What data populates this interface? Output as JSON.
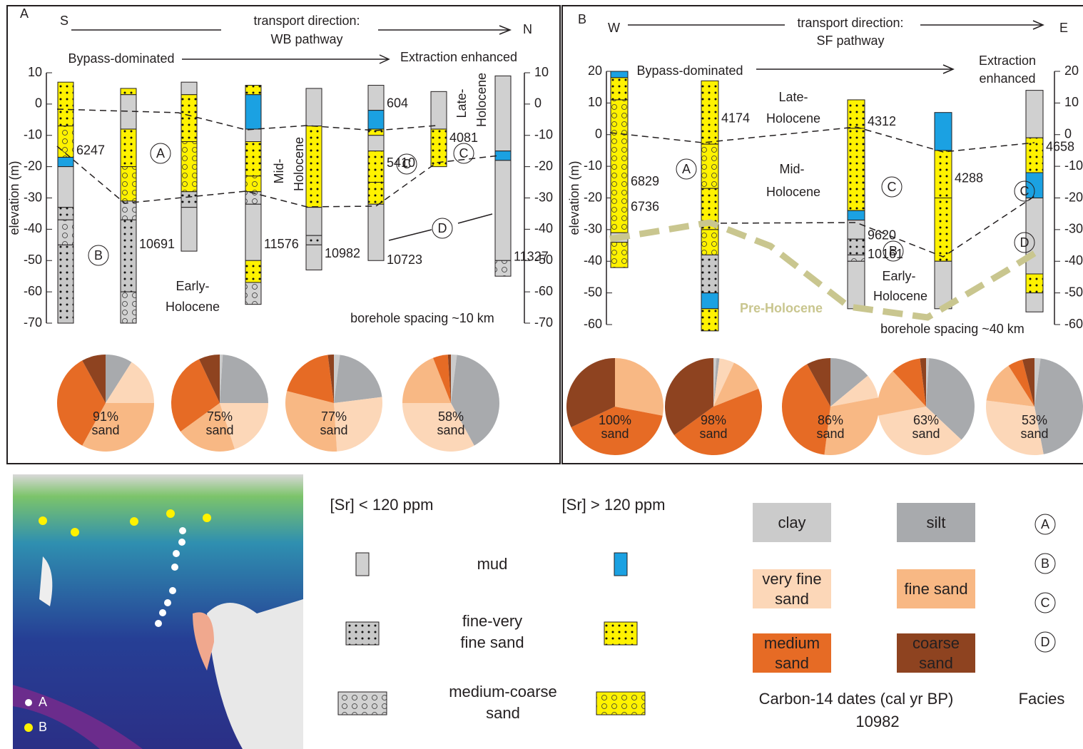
{
  "panel_a": {
    "label": "A",
    "start": "S",
    "end": "N",
    "transport": [
      "transport direction:",
      "WB pathway"
    ],
    "trend": [
      "Bypass-dominated",
      "Extraction enhanced"
    ],
    "ylabel": "elevation (m)",
    "ylim": [
      -70,
      10
    ],
    "yticks": [
      -70,
      -60,
      -50,
      -40,
      -30,
      -20,
      -10,
      0,
      10
    ],
    "periods": [
      "Early-",
      "Holocene",
      "Mid-",
      "Holocene",
      "Late-",
      "Holocene"
    ],
    "spacing": "borehole spacing ~10 km",
    "boreholes": [
      {
        "segments": [
          [
            7,
            -7,
            1,
            true
          ],
          [
            -7,
            -17,
            2,
            true
          ],
          [
            -17,
            -20,
            0,
            true
          ],
          [
            -20,
            -33,
            0,
            false
          ],
          [
            -33,
            -37,
            1,
            false
          ],
          [
            -37,
            -45,
            2,
            false
          ],
          [
            -45,
            -70,
            1,
            false
          ]
        ],
        "dates": [
          {
            "age": 6247,
            "elevation": -15
          }
        ]
      },
      {
        "segments": [
          [
            5,
            3,
            1,
            true
          ],
          [
            3,
            -8,
            0,
            false
          ],
          [
            -8,
            -20,
            1,
            true
          ],
          [
            -20,
            -31,
            2,
            true
          ],
          [
            -31,
            -37,
            2,
            false
          ],
          [
            -37,
            -60,
            1,
            false
          ],
          [
            -60,
            -70,
            2,
            false
          ]
        ],
        "dates": [
          {
            "age": 10691,
            "elevation": -45
          }
        ]
      },
      {
        "segments": [
          [
            7,
            3,
            0,
            false
          ],
          [
            3,
            -12,
            1,
            true
          ],
          [
            -12,
            -28,
            2,
            true
          ],
          [
            -28,
            -33,
            1,
            false
          ],
          [
            -33,
            -47,
            0,
            false
          ]
        ],
        "dates": []
      },
      {
        "segments": [
          [
            6,
            3,
            1,
            true
          ],
          [
            3,
            -8,
            0,
            true
          ],
          [
            -8,
            -12,
            0,
            false
          ],
          [
            -12,
            -23,
            1,
            true
          ],
          [
            -23,
            -28,
            2,
            true
          ],
          [
            -28,
            -32,
            2,
            false
          ],
          [
            -32,
            -50,
            0,
            false
          ],
          [
            -50,
            -57,
            1,
            true
          ],
          [
            -57,
            -64,
            2,
            false
          ]
        ],
        "dates": [
          {
            "age": 11576,
            "elevation": -45
          }
        ]
      },
      {
        "segments": [
          [
            5,
            -7,
            0,
            false
          ],
          [
            -7,
            -33,
            1,
            true
          ],
          [
            -33,
            -42,
            0,
            false
          ],
          [
            -42,
            -45,
            1,
            false
          ],
          [
            -45,
            -53,
            0,
            false
          ]
        ],
        "dates": [
          {
            "age": 10982,
            "elevation": -48
          }
        ]
      },
      {
        "segments": [
          [
            6,
            -2,
            0,
            false
          ],
          [
            -2,
            -8,
            0,
            true
          ],
          [
            -8,
            -10,
            1,
            true
          ],
          [
            -10,
            -15,
            0,
            false
          ],
          [
            -15,
            -25,
            1,
            true
          ],
          [
            -25,
            -32,
            1,
            true
          ],
          [
            -32,
            -50,
            0,
            false
          ]
        ],
        "dates": [
          {
            "age": 604,
            "elevation": 0
          },
          {
            "age": 5410,
            "elevation": -19
          },
          {
            "age": 10723,
            "elevation": -50
          }
        ]
      },
      {
        "segments": [
          [
            4,
            -8,
            0,
            false
          ],
          [
            -8,
            -20,
            1,
            true
          ]
        ],
        "dates": [
          {
            "age": 4081,
            "elevation": -11
          }
        ]
      },
      {
        "segments": [
          [
            9,
            -15,
            0,
            false
          ],
          [
            -15,
            -18,
            0,
            true
          ],
          [
            -18,
            -50,
            0,
            false
          ],
          [
            -50,
            -55,
            2,
            false
          ]
        ],
        "dates": [
          {
            "age": 11327,
            "elevation": -49
          }
        ]
      }
    ]
  },
  "panel_b": {
    "label": "B",
    "start": "W",
    "end": "E",
    "transport": [
      "transport direction:",
      "SF pathway"
    ],
    "trend": [
      "Bypass-dominated",
      "Extraction",
      "enhanced"
    ],
    "ylabel": "elevation (m)",
    "ylim": [
      -60,
      20
    ],
    "yticks": [
      -60,
      -50,
      -40,
      -30,
      -20,
      -10,
      0,
      10,
      20
    ],
    "periods": [
      "Late-",
      "Holocene",
      "Mid-",
      "Holocene",
      "Early-",
      "Holocene",
      "Pre-Holocene"
    ],
    "spacing": "borehole spacing ~40 km",
    "boreholes": [
      {
        "segments": [
          [
            20,
            18,
            0,
            true
          ],
          [
            18,
            11,
            1,
            true
          ],
          [
            11,
            -31,
            2,
            true
          ],
          [
            -31,
            -34,
            0,
            false
          ],
          [
            -34,
            -42,
            2,
            true
          ]
        ],
        "dates": [
          {
            "age": 6829,
            "elevation": -15
          },
          {
            "age": 6736,
            "elevation": -23
          }
        ]
      },
      {
        "segments": [
          [
            17,
            -3,
            1,
            true
          ],
          [
            -3,
            -17,
            2,
            true
          ],
          [
            -17,
            -30,
            1,
            true
          ],
          [
            -30,
            -38,
            2,
            true
          ],
          [
            -38,
            -50,
            1,
            false
          ],
          [
            -50,
            -55,
            0,
            true
          ],
          [
            -55,
            -62,
            1,
            true
          ]
        ],
        "dates": [
          {
            "age": 4174,
            "elevation": 5
          }
        ]
      },
      {
        "segments": [
          [
            11,
            2,
            1,
            true
          ],
          [
            2,
            -24,
            1,
            true
          ],
          [
            -24,
            -27,
            0,
            true
          ],
          [
            -27,
            -33,
            0,
            false
          ],
          [
            -33,
            -38,
            1,
            false
          ],
          [
            -38,
            -40,
            2,
            false
          ],
          [
            -40,
            -55,
            0,
            false
          ]
        ],
        "dates": [
          {
            "age": 4312,
            "elevation": 4
          },
          {
            "age": 9620,
            "elevation": -32
          },
          {
            "age": 10161,
            "elevation": -38
          }
        ]
      },
      {
        "segments": [
          [
            7,
            -5,
            0,
            true
          ],
          [
            -5,
            -20,
            1,
            true
          ],
          [
            -20,
            -40,
            1,
            true
          ],
          [
            -40,
            -55,
            0,
            false
          ]
        ],
        "dates": [
          {
            "age": 4288,
            "elevation": -14
          }
        ]
      },
      {
        "segments": [
          [
            14,
            -1,
            0,
            false
          ],
          [
            -1,
            -12,
            1,
            true
          ],
          [
            -12,
            -20,
            0,
            true
          ],
          [
            -20,
            -44,
            0,
            false
          ],
          [
            -44,
            -50,
            1,
            true
          ],
          [
            -50,
            -56,
            0,
            false
          ]
        ],
        "dates": [
          {
            "age": 4658,
            "elevation": -4
          }
        ]
      }
    ]
  },
  "facies": [
    "A",
    "B",
    "C",
    "D"
  ],
  "legend": {
    "sr": [
      "[Sr] < 120 ppm",
      "[Sr] > 120 ppm"
    ],
    "lithologies": [
      "mud",
      "fine-very fine sand",
      "medium-coarse sand"
    ],
    "dates_caption": "Carbon-14 dates (cal yr BP)",
    "date_example": "10982",
    "facies_caption": "Facies"
  },
  "grain_size_legend": {
    "categories": [
      "clay",
      "silt",
      "very fine sand",
      "fine sand",
      "medium sand",
      "coarse sand"
    ],
    "colors": [
      "#cbcbcb",
      "#a8aaad",
      "#fcd7b8",
      "#f8b884",
      "#e66b25",
      "#8e4320"
    ]
  },
  "map": {
    "labels": [
      "A",
      "B"
    ]
  },
  "chart_data": [
    {
      "type": "pie",
      "values": [
        0,
        9,
        16,
        33,
        34,
        8
      ],
      "annotation": [
        "91%",
        "sand"
      ]
    },
    {
      "type": "pie",
      "values": [
        1,
        24,
        20,
        20,
        28,
        7
      ],
      "annotation": [
        "75%",
        "sand"
      ]
    },
    {
      "type": "pie",
      "values": [
        2,
        21,
        26,
        30,
        19,
        2
      ],
      "annotation": [
        "77%",
        "sand"
      ]
    },
    {
      "type": "pie",
      "values": [
        2,
        40,
        33,
        19,
        5,
        1
      ],
      "annotation": [
        "58%",
        "sand"
      ]
    },
    {
      "type": "pie",
      "values": [
        0,
        0,
        0,
        28,
        40,
        32
      ],
      "annotation": [
        "100%",
        "sand"
      ]
    },
    {
      "type": "pie",
      "values": [
        1,
        1,
        5,
        12,
        46,
        35
      ],
      "annotation": [
        "98%",
        "sand"
      ]
    },
    {
      "type": "pie",
      "values": [
        0,
        14,
        8,
        30,
        40,
        8
      ],
      "annotation": [
        "86%",
        "sand"
      ]
    },
    {
      "type": "pie",
      "values": [
        1,
        36,
        35,
        16,
        10,
        2
      ],
      "annotation": [
        "63%",
        "sand"
      ]
    },
    {
      "type": "pie",
      "values": [
        2,
        45,
        30,
        14,
        5,
        4
      ],
      "annotation": [
        "53%",
        "sand"
      ]
    }
  ]
}
